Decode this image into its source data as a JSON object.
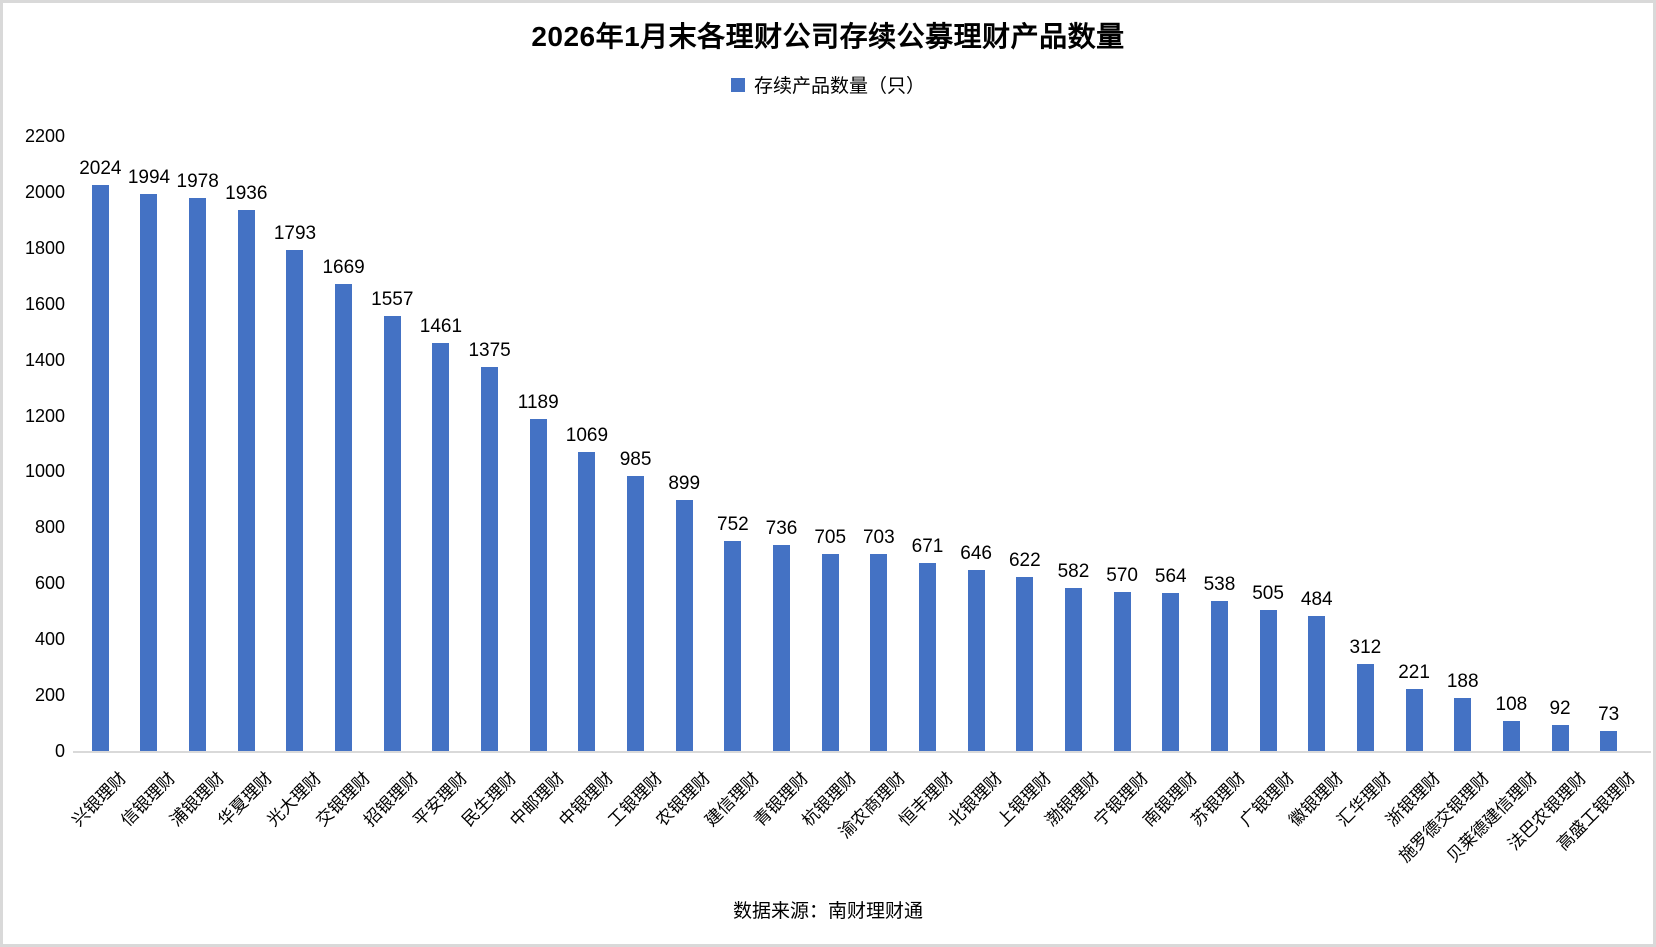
{
  "title": "2026年1月末各理财公司存续公募理财产品数量",
  "legend": {
    "label": "存续产品数量（只）",
    "marker_color": "#4472C4"
  },
  "source": "数据来源：南财理财通",
  "colors": {
    "bar": "#4472C4",
    "axis_line": "#d9d9d9",
    "text": "#000000",
    "frame_border": "#d9d9d9"
  },
  "chart_data": {
    "type": "bar",
    "title": "2026年1月末各理财公司存续公募理财产品数量",
    "xlabel": "",
    "ylabel": "",
    "legend_entries": [
      "存续产品数量（只）"
    ],
    "legend_position": "top",
    "grid": false,
    "ylim": [
      0,
      2200
    ],
    "ytick_step": 200,
    "yticks": [
      0,
      200,
      400,
      600,
      800,
      1000,
      1200,
      1400,
      1600,
      1800,
      2000,
      2200
    ],
    "categories": [
      "兴银理财",
      "信银理财",
      "浦银理财",
      "华夏理财",
      "光大理财",
      "交银理财",
      "招银理财",
      "平安理财",
      "民生理财",
      "中邮理财",
      "中银理财",
      "工银理财",
      "农银理财",
      "建信理财",
      "青银理财",
      "杭银理财",
      "渝农商理财",
      "恒丰理财",
      "北银理财",
      "上银理财",
      "渤银理财",
      "宁银理财",
      "南银理财",
      "苏银理财",
      "广银理财",
      "徽银理财",
      "汇华理财",
      "浙银理财",
      "施罗德交银理财",
      "贝莱德建信理财",
      "法巴农银理财",
      "高盛工银理财"
    ],
    "values": [
      2024,
      1994,
      1978,
      1936,
      1793,
      1669,
      1557,
      1461,
      1375,
      1189,
      1069,
      985,
      899,
      752,
      736,
      705,
      703,
      671,
      646,
      622,
      582,
      570,
      564,
      538,
      505,
      484,
      312,
      221,
      188,
      108,
      92,
      73
    ]
  }
}
